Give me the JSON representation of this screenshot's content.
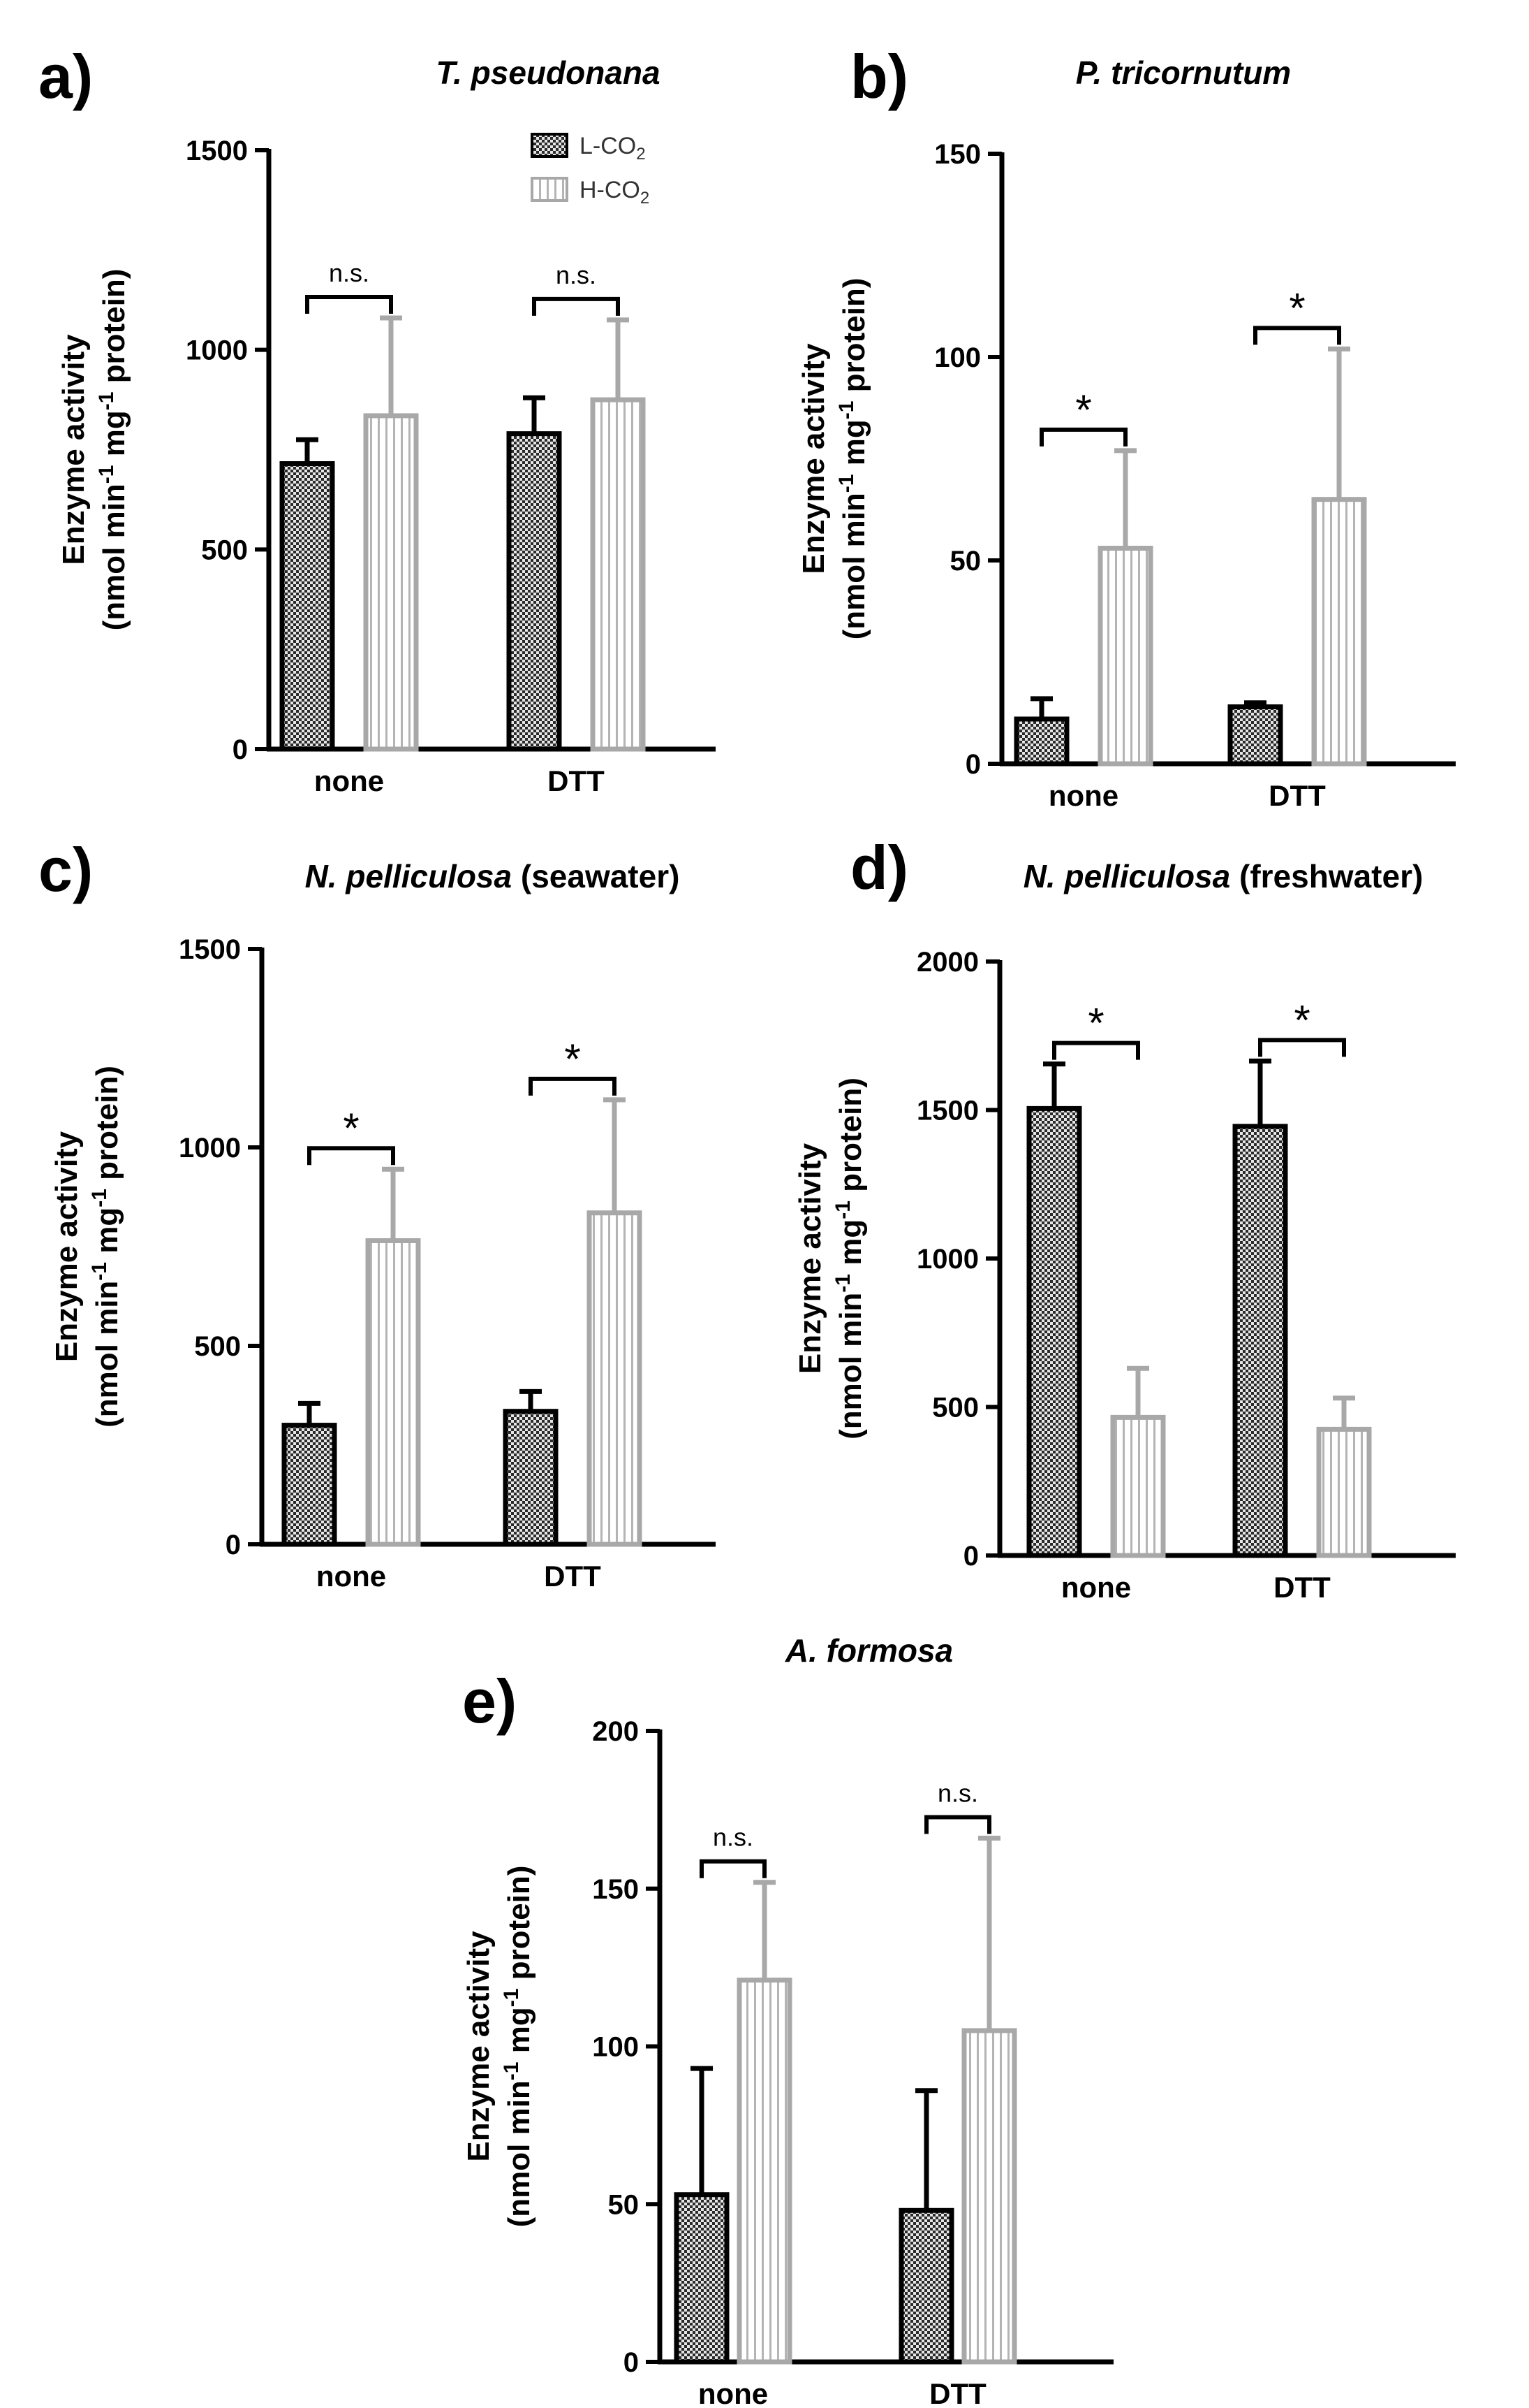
{
  "legend": {
    "low_base": "L-CO",
    "low_sub": "2",
    "high_base": "H-CO",
    "high_sub": "2"
  },
  "colors": {
    "low_fill": "#3a3a3a",
    "low_edge": "#000000",
    "high_edge": "#a8a8a8",
    "high_fill": "#ffffff",
    "axis": "#000000"
  },
  "ylabel_line1": "Enzyme activity",
  "ylabel_line2": {
    "a": "(nmol min",
    "sup1": "-1",
    "b": " mg",
    "sup2": "-1",
    "c": " protein)"
  },
  "chart_data": [
    {
      "id": "a",
      "letter": "a)",
      "type": "bar",
      "title_italic": "T. pseudonana",
      "title_plain": "",
      "categories": [
        "none",
        "DTT"
      ],
      "ylim": [
        0,
        1500
      ],
      "yticks": [
        0,
        500,
        1000,
        1500
      ],
      "ytick_labels": [
        "0",
        "500",
        "1000",
        "1500"
      ],
      "series": [
        {
          "name": "L-CO2",
          "values": [
            715,
            790
          ],
          "errors": [
            60,
            90
          ]
        },
        {
          "name": "H-CO2",
          "values": [
            835,
            875
          ],
          "errors": [
            245,
            200
          ]
        }
      ],
      "significance": [
        "n.s.",
        "n.s."
      ],
      "show_legend": true
    },
    {
      "id": "b",
      "letter": "b)",
      "type": "bar",
      "title_italic": "P. tricornutum",
      "title_plain": "",
      "categories": [
        "none",
        "DTT"
      ],
      "ylim": [
        0,
        150
      ],
      "yticks": [
        0,
        50,
        100,
        150
      ],
      "ytick_labels": [
        "0",
        "50",
        "100",
        "150"
      ],
      "series": [
        {
          "name": "L-CO2",
          "values": [
            11,
            14
          ],
          "errors": [
            5,
            1
          ]
        },
        {
          "name": "H-CO2",
          "values": [
            53,
            65
          ],
          "errors": [
            24,
            37
          ]
        }
      ],
      "significance": [
        "*",
        "*"
      ],
      "show_legend": false
    },
    {
      "id": "c",
      "letter": "c)",
      "type": "bar",
      "title_italic": "N. pelliculosa",
      "title_plain": " (seawater)",
      "categories": [
        "none",
        "DTT"
      ],
      "ylim": [
        0,
        1500
      ],
      "yticks": [
        0,
        500,
        1000,
        1500
      ],
      "ytick_labels": [
        "0",
        "500",
        "1000",
        "1500"
      ],
      "series": [
        {
          "name": "L-CO2",
          "values": [
            300,
            335
          ],
          "errors": [
            55,
            50
          ]
        },
        {
          "name": "H-CO2",
          "values": [
            765,
            835
          ],
          "errors": [
            180,
            285
          ]
        }
      ],
      "significance": [
        "*",
        "*"
      ],
      "show_legend": false
    },
    {
      "id": "d",
      "letter": "d)",
      "type": "bar",
      "title_italic": "N. pelliculosa",
      "title_plain": " (freshwater)",
      "categories": [
        "none",
        "DTT"
      ],
      "ylim": [
        0,
        2000
      ],
      "yticks": [
        0,
        500,
        1000,
        1500,
        2000
      ],
      "ytick_labels": [
        "0",
        "500",
        "1000",
        "1500",
        "2000"
      ],
      "series": [
        {
          "name": "L-CO2",
          "values": [
            1505,
            1445
          ],
          "errors": [
            150,
            220
          ]
        },
        {
          "name": "H-CO2",
          "values": [
            465,
            425
          ],
          "errors": [
            165,
            105
          ]
        }
      ],
      "significance": [
        "*",
        "*"
      ],
      "show_legend": false
    },
    {
      "id": "e",
      "letter": "e)",
      "type": "bar",
      "title_italic": "A. formosa",
      "title_plain": "",
      "categories": [
        "none",
        "DTT"
      ],
      "ylim": [
        0,
        200
      ],
      "yticks": [
        0,
        50,
        100,
        150,
        200
      ],
      "ytick_labels": [
        "0",
        "50",
        "100",
        "150",
        "200"
      ],
      "series": [
        {
          "name": "L-CO2",
          "values": [
            53,
            48
          ],
          "errors": [
            40,
            38
          ]
        },
        {
          "name": "H-CO2",
          "values": [
            121,
            105
          ],
          "errors": [
            31,
            61
          ]
        }
      ],
      "significance": [
        "n.s.",
        "n.s."
      ],
      "show_legend": false
    }
  ]
}
